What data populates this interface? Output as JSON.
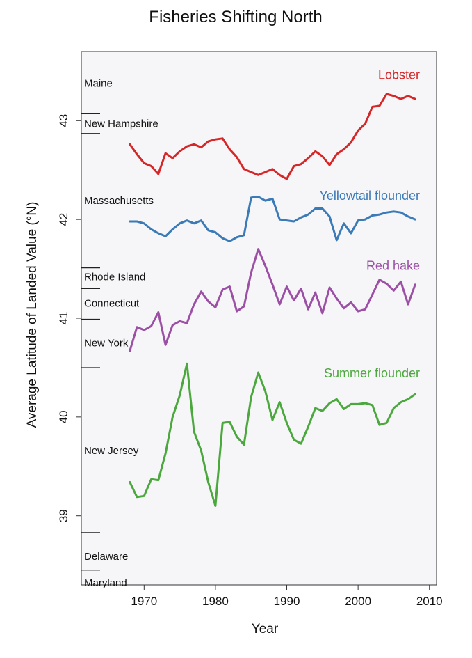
{
  "chart_data": {
    "type": "line",
    "title": "Fisheries Shifting North",
    "xlabel": "Year",
    "ylabel": "Average Latitude of Landed Value (°N)",
    "xlim": [
      1961.2,
      2011
    ],
    "ylim": [
      38.3,
      43.7
    ],
    "xticks": [
      1970,
      1980,
      1990,
      2000,
      2010
    ],
    "yticks": [
      39,
      40,
      41,
      42,
      43
    ],
    "grid": false,
    "state_markers": [
      {
        "name": "Maine",
        "lat": 43.38
      },
      {
        "name": "",
        "lat": 43.07
      },
      {
        "name": "New Hampshire",
        "lat": 42.97
      },
      {
        "name": "",
        "lat": 42.87
      },
      {
        "name": "Massachusetts",
        "lat": 42.19
      },
      {
        "name": "",
        "lat": 41.51
      },
      {
        "name": "Rhode Island",
        "lat": 41.42
      },
      {
        "name": "",
        "lat": 41.3
      },
      {
        "name": "Connecticut",
        "lat": 41.15
      },
      {
        "name": "",
        "lat": 40.99
      },
      {
        "name": "New York",
        "lat": 40.75
      },
      {
        "name": "",
        "lat": 40.5
      },
      {
        "name": "New Jersey",
        "lat": 39.66
      },
      {
        "name": "",
        "lat": 38.83
      },
      {
        "name": "Delaware",
        "lat": 38.59
      },
      {
        "name": "",
        "lat": 38.45
      },
      {
        "name": "Maryland",
        "lat": 38.32
      }
    ],
    "x": [
      1968,
      1969,
      1970,
      1971,
      1972,
      1973,
      1974,
      1975,
      1976,
      1977,
      1978,
      1979,
      1980,
      1981,
      1982,
      1983,
      1984,
      1985,
      1986,
      1987,
      1988,
      1989,
      1990,
      1991,
      1992,
      1993,
      1994,
      1995,
      1996,
      1997,
      1998,
      1999,
      2000,
      2001,
      2002,
      2003,
      2004,
      2005,
      2006,
      2007,
      2008
    ],
    "series": [
      {
        "name": "Lobster",
        "color": "#d62728",
        "values": [
          42.76,
          42.66,
          42.57,
          42.54,
          42.46,
          42.67,
          42.62,
          42.69,
          42.74,
          42.76,
          42.73,
          42.79,
          42.81,
          42.82,
          42.71,
          42.63,
          42.51,
          42.48,
          42.45,
          42.48,
          42.51,
          42.45,
          42.41,
          42.54,
          42.56,
          42.62,
          42.69,
          42.64,
          42.55,
          42.66,
          42.71,
          42.78,
          42.9,
          42.97,
          43.14,
          43.15,
          43.27,
          43.25,
          43.22,
          43.25,
          43.22
        ]
      },
      {
        "name": "Yellowtail flounder",
        "color": "#3a7ab7",
        "values": [
          41.98,
          41.98,
          41.96,
          41.9,
          41.86,
          41.83,
          41.9,
          41.96,
          41.99,
          41.96,
          41.99,
          41.89,
          41.87,
          41.81,
          41.78,
          41.82,
          41.84,
          42.22,
          42.23,
          42.19,
          42.21,
          42.0,
          41.99,
          41.98,
          42.02,
          42.05,
          42.11,
          42.11,
          42.03,
          41.79,
          41.96,
          41.86,
          41.99,
          42.0,
          42.04,
          42.05,
          42.07,
          42.08,
          42.07,
          42.03,
          42.0
        ]
      },
      {
        "name": "Red hake",
        "color": "#9b4fa5",
        "values": [
          40.67,
          40.91,
          40.88,
          40.92,
          41.06,
          40.73,
          40.93,
          40.97,
          40.95,
          41.14,
          41.27,
          41.17,
          41.11,
          41.29,
          41.32,
          41.07,
          41.12,
          41.46,
          41.7,
          41.53,
          41.34,
          41.14,
          41.32,
          41.18,
          41.3,
          41.09,
          41.26,
          41.05,
          41.31,
          41.2,
          41.1,
          41.16,
          41.07,
          41.09,
          41.24,
          41.39,
          41.35,
          41.28,
          41.37,
          41.14,
          41.34
        ]
      },
      {
        "name": "Summer flounder",
        "color": "#4aa83c",
        "values": [
          39.34,
          39.19,
          39.2,
          39.37,
          39.36,
          39.63,
          40.0,
          40.22,
          40.54,
          39.85,
          39.66,
          39.34,
          39.1,
          39.94,
          39.95,
          39.8,
          39.72,
          40.2,
          40.45,
          40.26,
          39.97,
          40.15,
          39.94,
          39.77,
          39.73,
          39.9,
          40.09,
          40.06,
          40.14,
          40.18,
          40.08,
          40.13,
          40.13,
          40.14,
          40.12,
          39.92,
          39.94,
          40.09,
          40.15,
          40.18,
          40.23
        ]
      }
    ]
  }
}
